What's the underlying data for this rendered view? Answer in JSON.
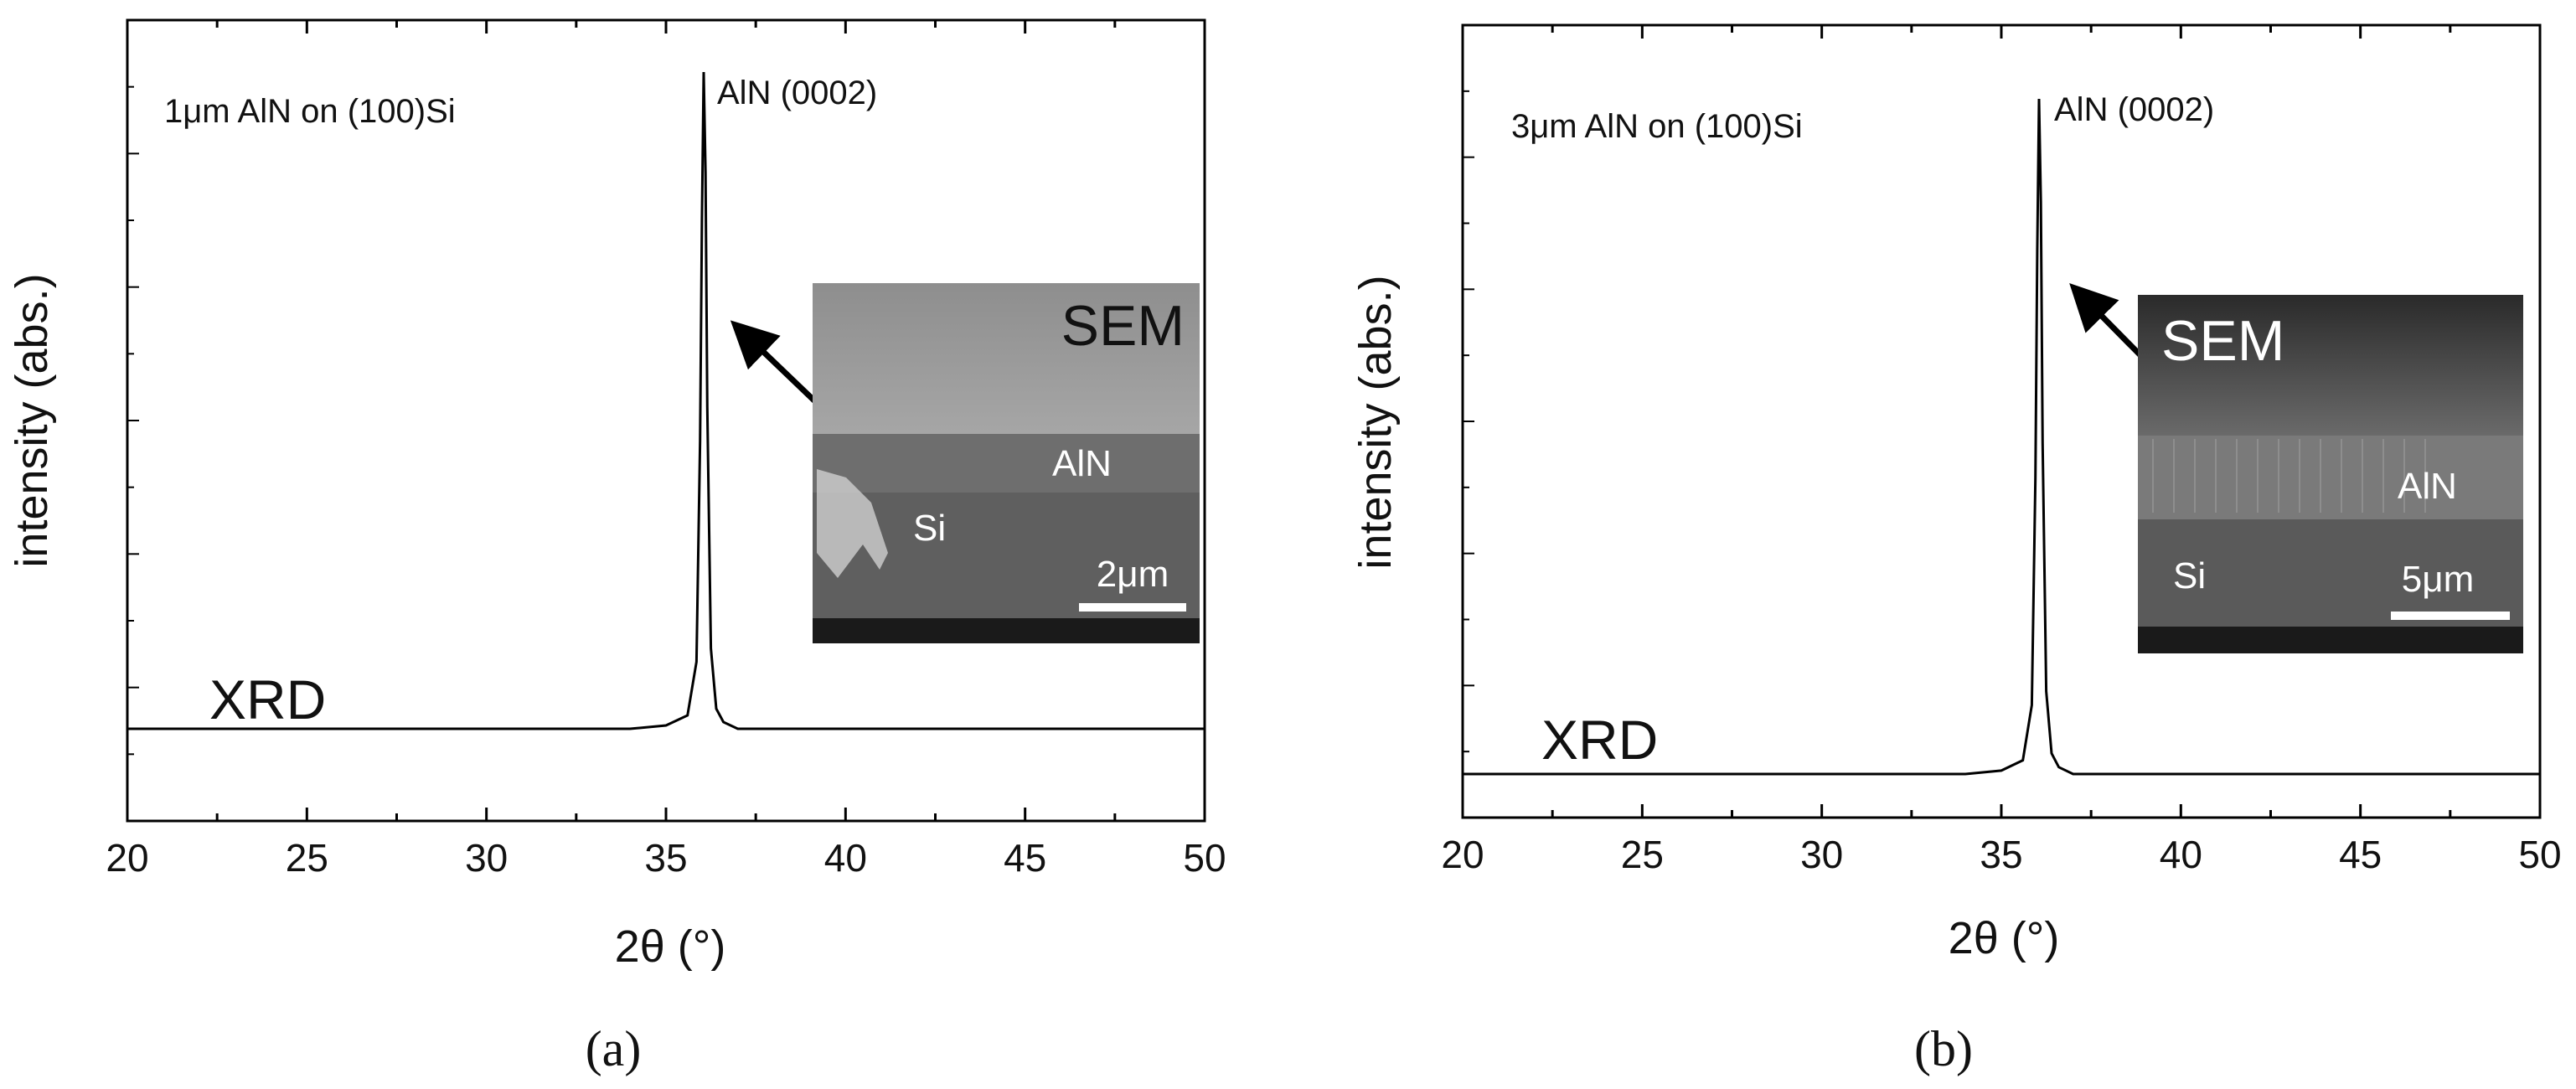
{
  "chart_data": [
    {
      "type": "line",
      "panel_label": "(a)",
      "xlabel": "2θ (°)",
      "ylabel": "intensity (abs.)",
      "xlim": [
        20,
        50
      ],
      "x_ticks": [
        "20",
        "25",
        "30",
        "35",
        "40",
        "45",
        "50"
      ],
      "sample_label": "1μm AlN on (100)Si",
      "peak_label": "AlN (0002)",
      "trace_label": "XRD",
      "series": [
        {
          "x": [
            20,
            34,
            35,
            35.6,
            35.85,
            35.95,
            36.0,
            36.05,
            36.1,
            36.15,
            36.25,
            36.4,
            36.6,
            37,
            38,
            50
          ],
          "y": [
            0.02,
            0.02,
            0.025,
            0.04,
            0.12,
            0.45,
            0.78,
            1.0,
            0.85,
            0.5,
            0.14,
            0.05,
            0.03,
            0.02,
            0.02,
            0.02
          ]
        }
      ],
      "inset": {
        "title": "SEM",
        "layer_top": "AlN",
        "substrate": "Si",
        "scale_bar": "2μm"
      }
    },
    {
      "type": "line",
      "panel_label": "(b)",
      "xlabel": "2θ (°)",
      "ylabel": "intensity (abs.)",
      "xlim": [
        20,
        50
      ],
      "x_ticks": [
        "20",
        "25",
        "30",
        "35",
        "40",
        "45",
        "50"
      ],
      "sample_label": "3μm AlN on (100)Si",
      "peak_label": "AlN (0002)",
      "trace_label": "XRD",
      "series": [
        {
          "x": [
            20,
            34,
            35,
            35.6,
            35.85,
            35.95,
            36.0,
            36.05,
            36.1,
            36.15,
            36.25,
            36.4,
            36.6,
            37,
            38,
            50
          ],
          "y": [
            0.02,
            0.02,
            0.025,
            0.04,
            0.12,
            0.45,
            0.78,
            1.0,
            0.85,
            0.5,
            0.14,
            0.05,
            0.03,
            0.02,
            0.02,
            0.02
          ]
        }
      ],
      "inset": {
        "title": "SEM",
        "layer_top": "AlN",
        "substrate": "Si",
        "scale_bar": "5μm"
      }
    }
  ]
}
